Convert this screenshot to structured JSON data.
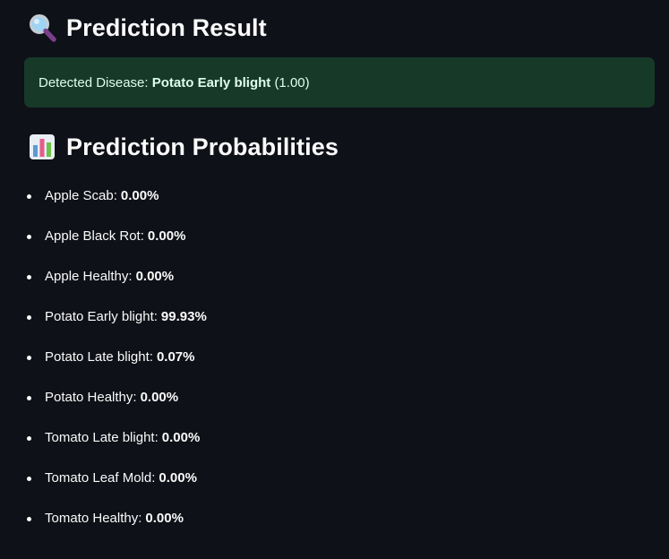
{
  "result": {
    "title": "Prediction Result",
    "icon": "magnifying-glass-icon",
    "alert": {
      "prefix": "Detected Disease:",
      "disease": "Potato Early blight",
      "confidence": "(1.00)",
      "color": "#173928"
    }
  },
  "probabilities": {
    "title": "Prediction Probabilities",
    "icon": "bar-chart-icon",
    "items": [
      {
        "label": "Apple Scab:",
        "value": "0.00%"
      },
      {
        "label": "Apple Black Rot:",
        "value": "0.00%"
      },
      {
        "label": "Apple Healthy:",
        "value": "0.00%"
      },
      {
        "label": "Potato Early blight:",
        "value": "99.93%"
      },
      {
        "label": "Potato Late blight:",
        "value": "0.07%"
      },
      {
        "label": "Potato Healthy:",
        "value": "0.00%"
      },
      {
        "label": "Tomato Late blight:",
        "value": "0.00%"
      },
      {
        "label": "Tomato Leaf Mold:",
        "value": "0.00%"
      },
      {
        "label": "Tomato Healthy:",
        "value": "0.00%"
      }
    ]
  },
  "theme": {
    "background": "#0e1117",
    "text": "#fafafa"
  }
}
